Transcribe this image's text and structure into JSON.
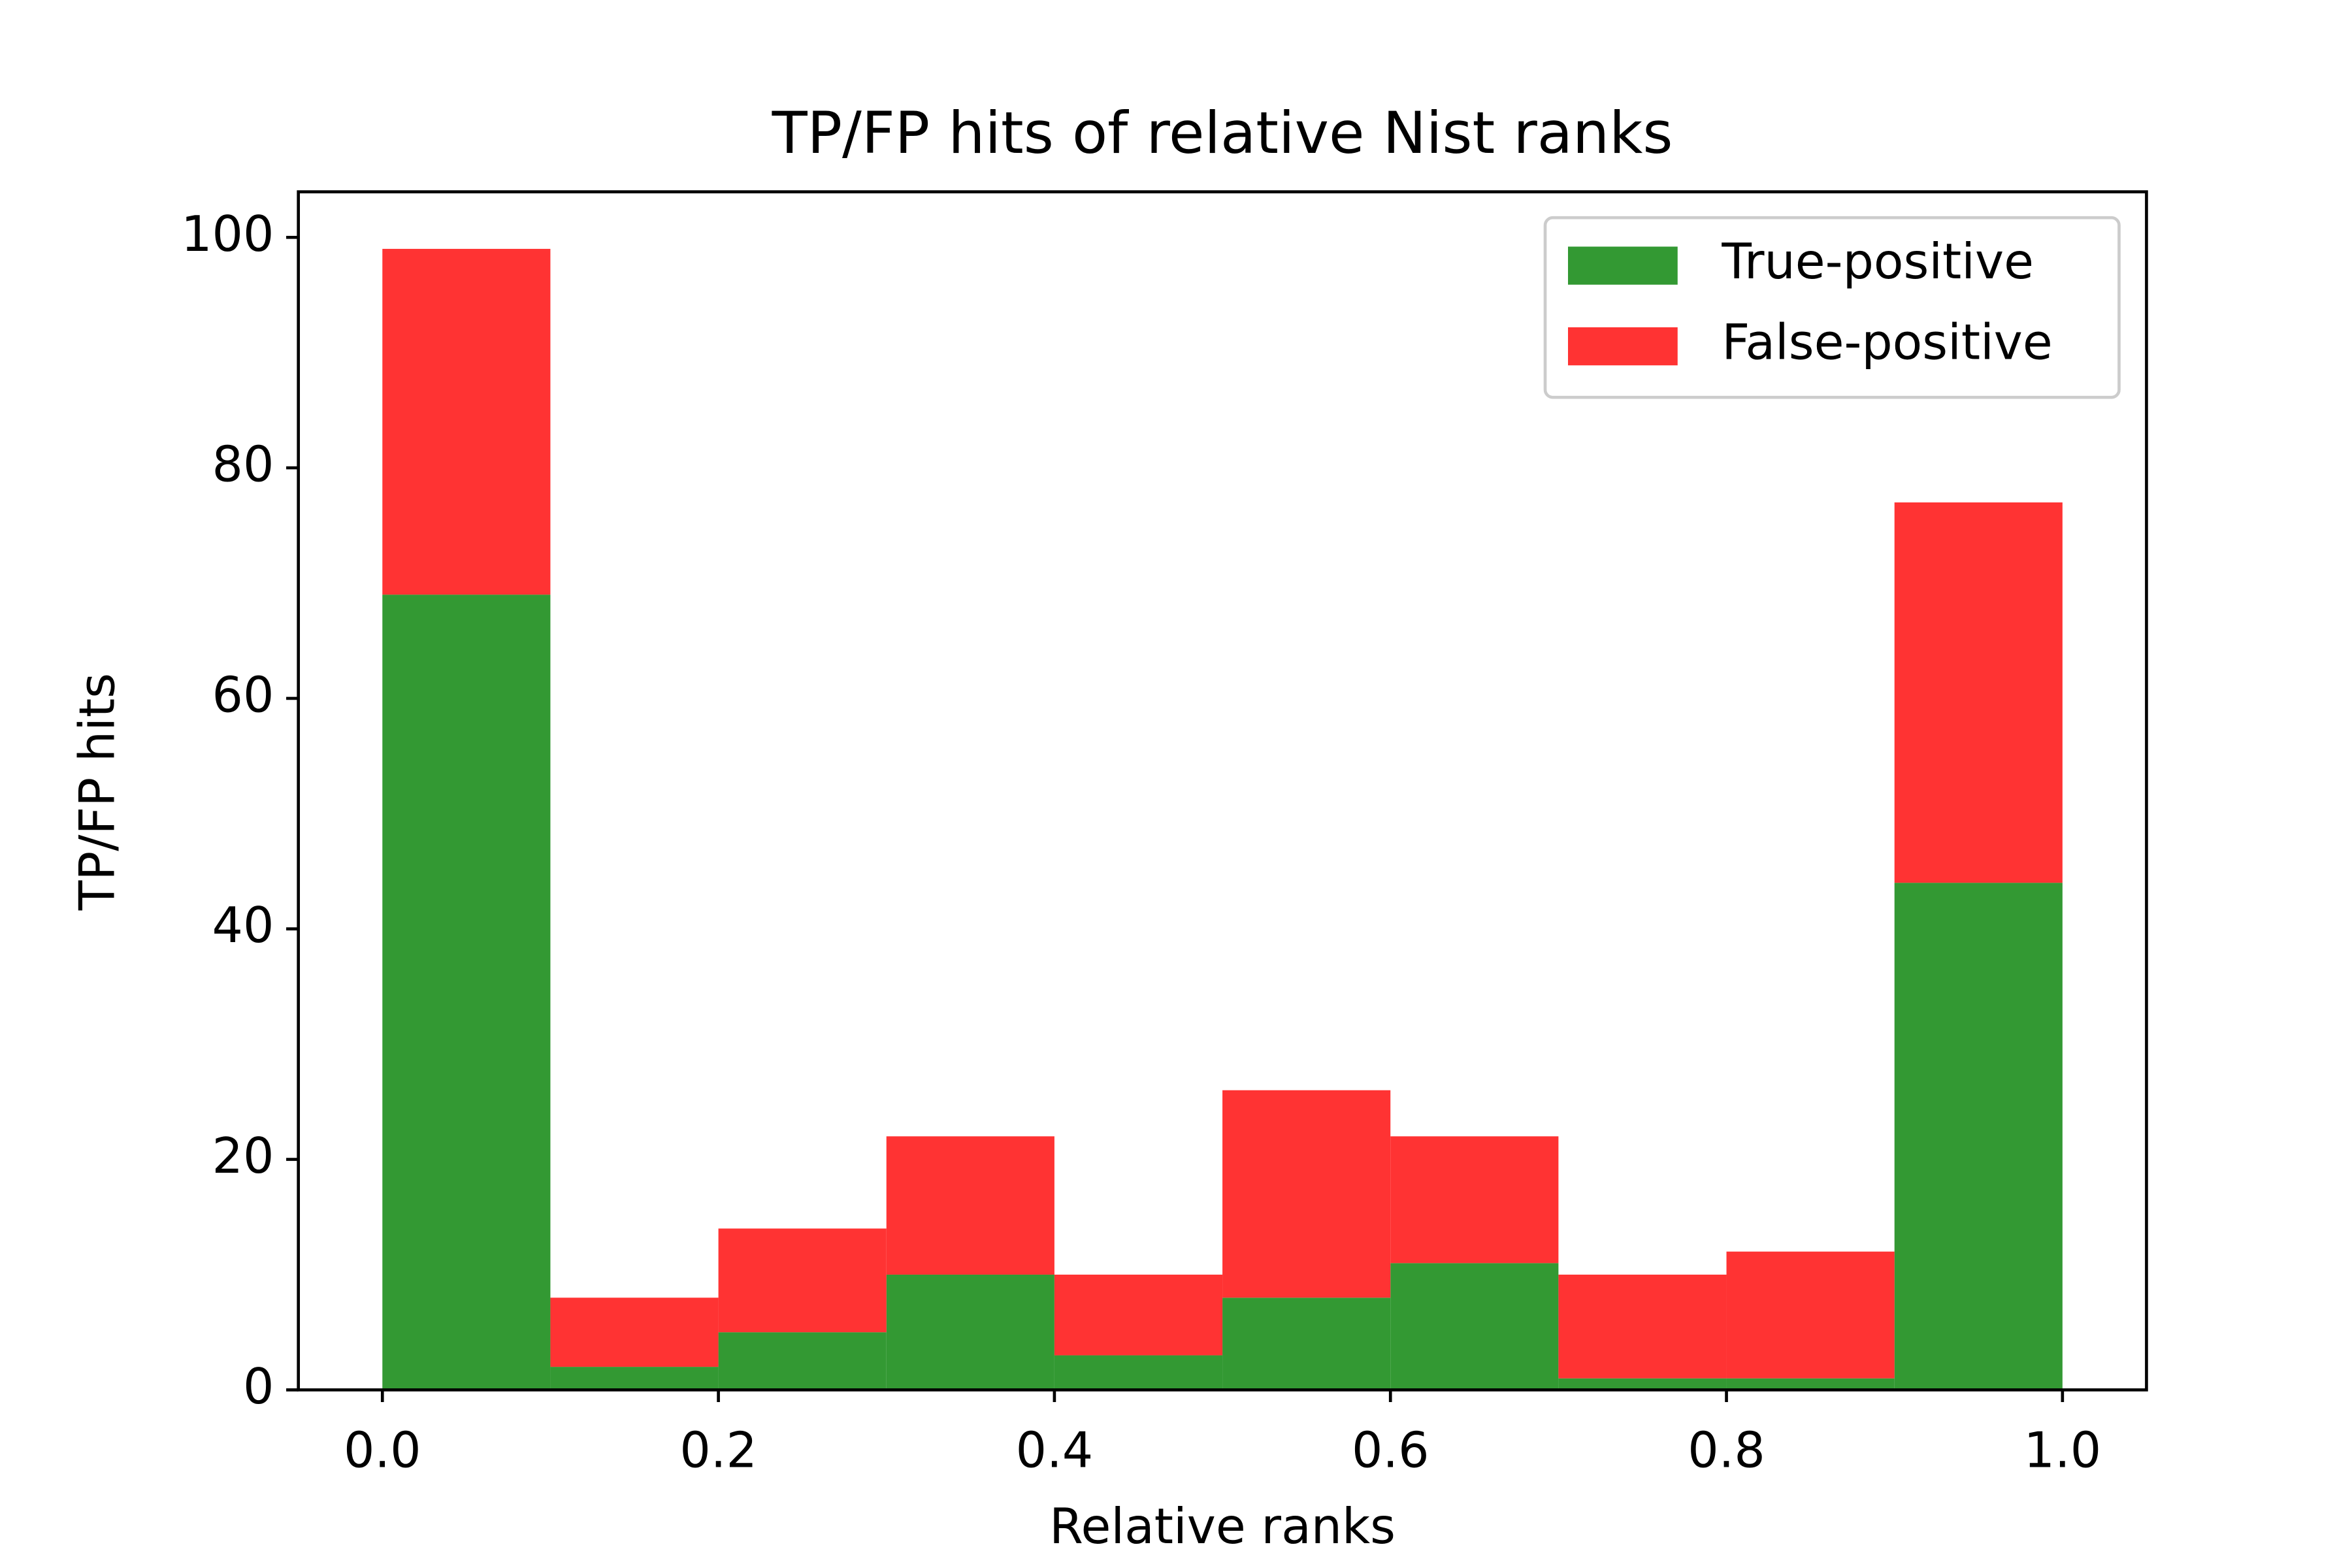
{
  "chart_data": {
    "type": "histogram",
    "title": "TP/FP hits of relative Nist ranks",
    "xlabel": "Relative ranks",
    "ylabel": "TP/FP hits",
    "bins": [
      0,
      0.1,
      0.2,
      0.3,
      0.4,
      0.5,
      0.6,
      0.7,
      0.8,
      0.9,
      1
    ],
    "stacked": true,
    "series": [
      {
        "name": "True-positive",
        "color": "#339933",
        "values": [
          69,
          2,
          5,
          10,
          3,
          8,
          11,
          1,
          1,
          44
        ]
      },
      {
        "name": "False-positive",
        "color": "#ff3333",
        "values": [
          30,
          6,
          9,
          12,
          7,
          18,
          11,
          9,
          11,
          33
        ]
      }
    ],
    "xlim": [
      -0.05,
      1.05
    ],
    "xticks": [
      {
        "value": 0,
        "label": "0.0"
      },
      0.2,
      0.4,
      0.6,
      0.8,
      {
        "value": 1,
        "label": "1.0"
      }
    ],
    "ylim": [
      0,
      103.95
    ],
    "yticks": [
      0,
      20,
      40,
      60,
      80,
      100
    ],
    "legend": "upper right"
  }
}
